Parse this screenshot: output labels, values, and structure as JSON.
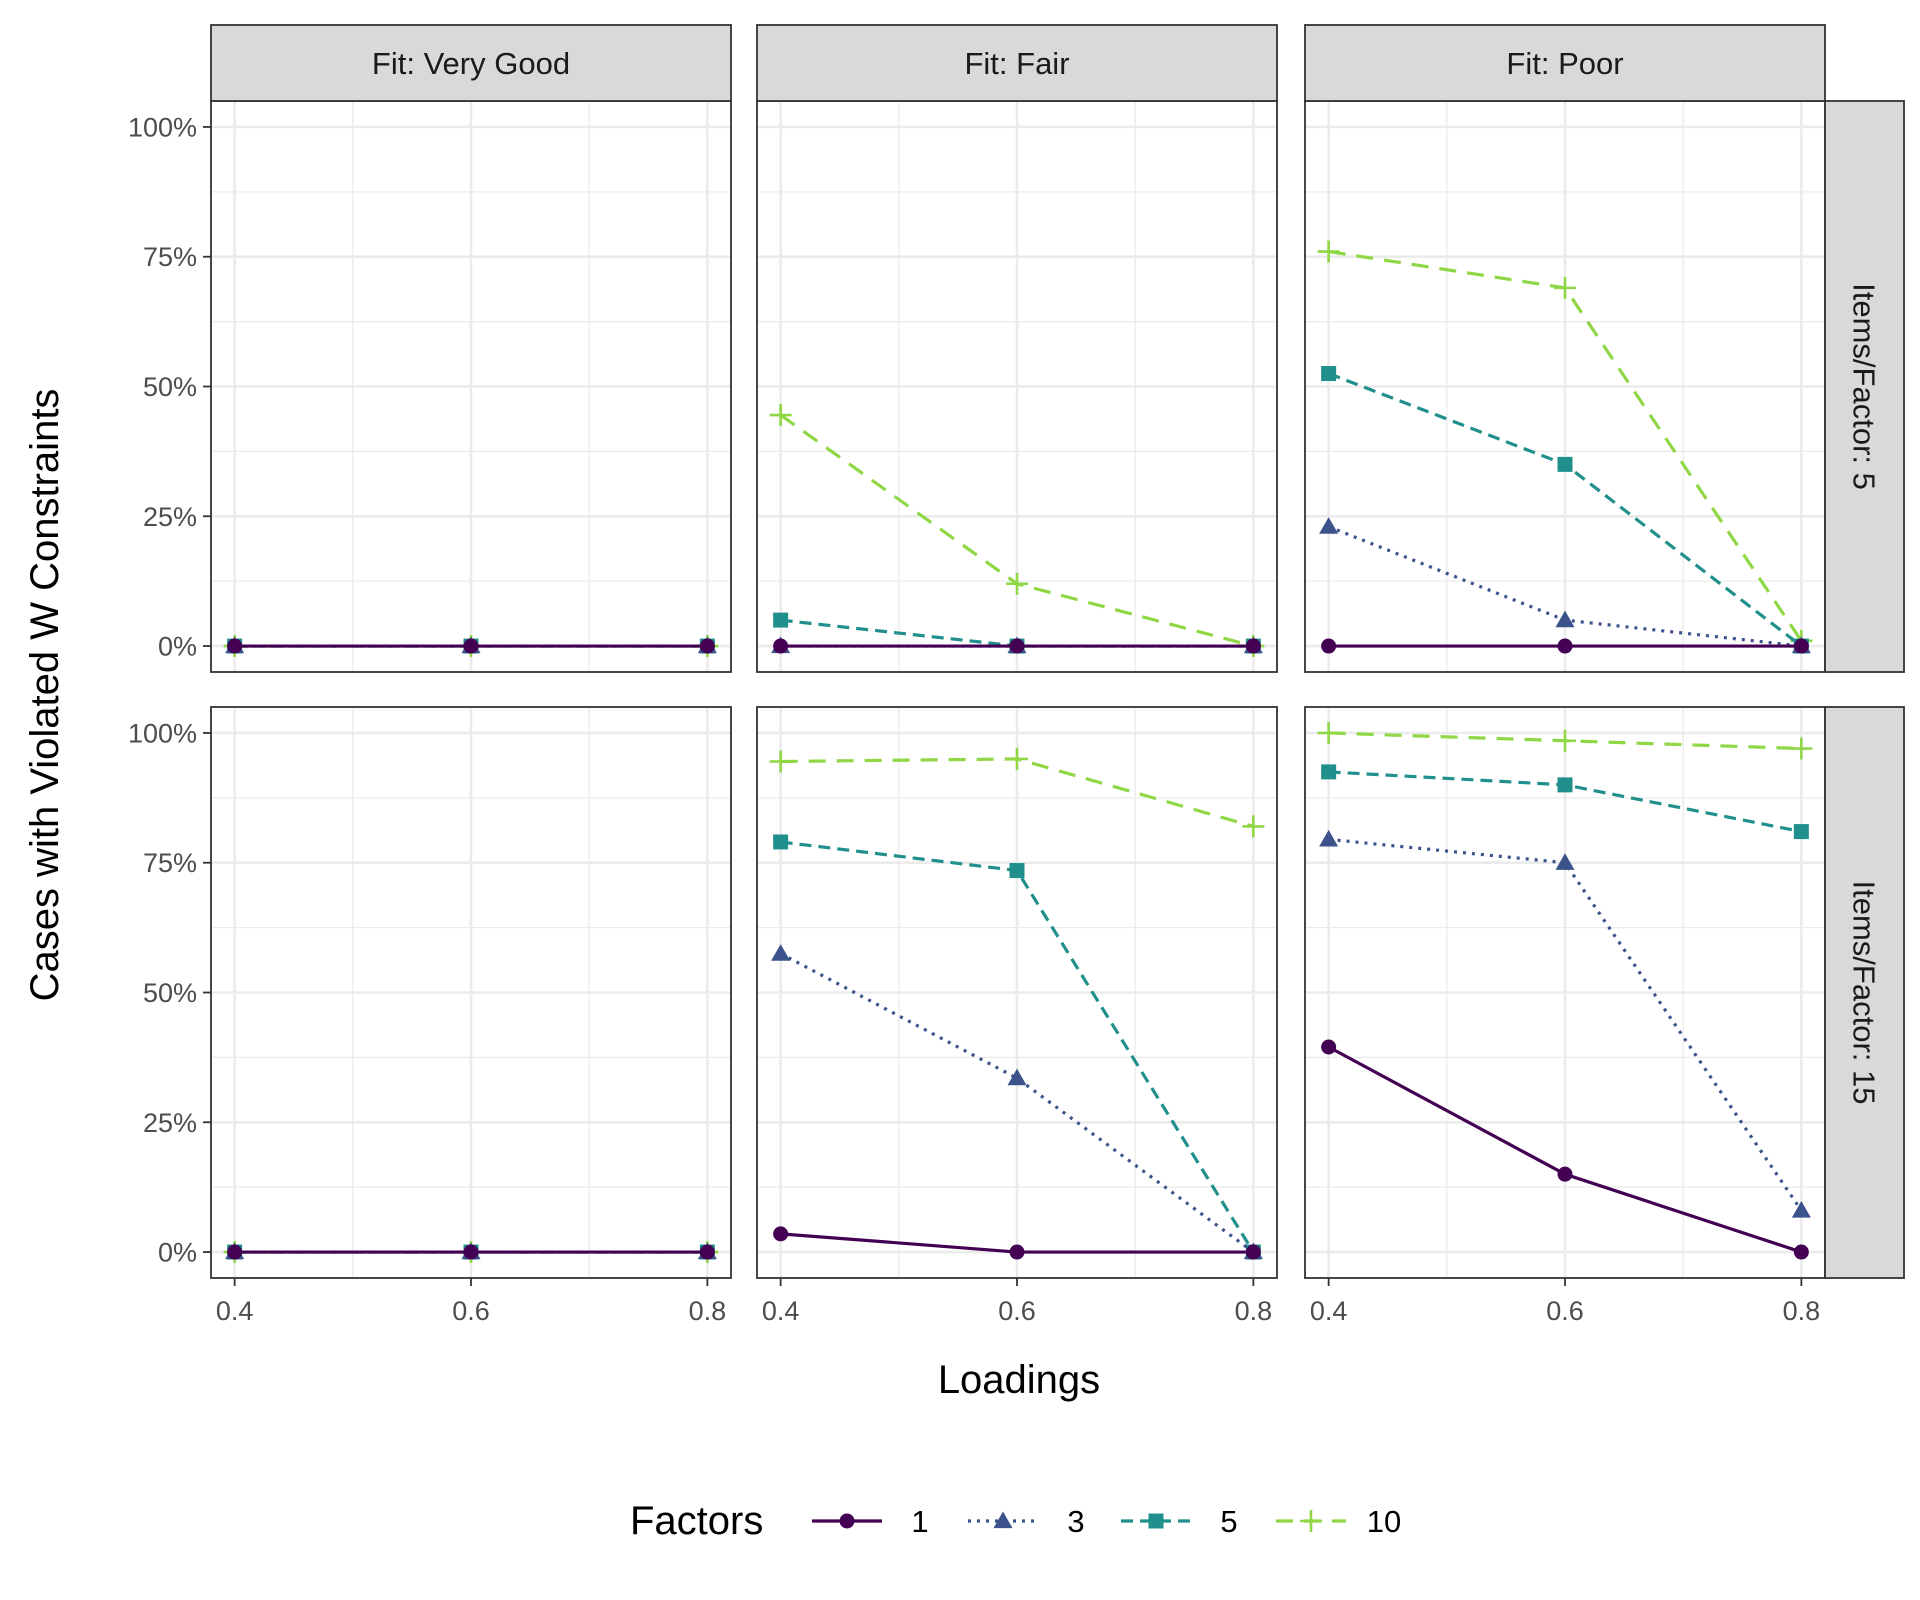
{
  "chart_data": {
    "type": "line",
    "facet_columns": [
      {
        "label": "Fit: Very Good"
      },
      {
        "label": "Fit: Fair"
      },
      {
        "label": "Fit: Poor"
      }
    ],
    "facet_rows": [
      {
        "label": "Items/Factor: 5"
      },
      {
        "label": "Items/Factor: 15"
      }
    ],
    "x": [
      0.4,
      0.6,
      0.8
    ],
    "x_tick_labels": [
      "0.4",
      "0.6",
      "0.8"
    ],
    "xlim": [
      0.38,
      0.82
    ],
    "ylim": [
      -0.05,
      1.05
    ],
    "y_ticks": [
      0,
      0.25,
      0.5,
      0.75,
      1
    ],
    "y_tick_labels": [
      "0%",
      "25%",
      "50%",
      "75%",
      "100%"
    ],
    "xlabel": "Loadings",
    "ylabel": "Cases with Violated W Constraints",
    "legend": {
      "title": "Factors",
      "position": "bottom"
    },
    "series_styles": [
      {
        "name": "1",
        "color": "#440154",
        "marker": "circle",
        "dash": "solid"
      },
      {
        "name": "3",
        "color": "#3b528b",
        "marker": "triangle",
        "dash": "dotted"
      },
      {
        "name": "5",
        "color": "#21908c",
        "marker": "square",
        "dash": "dashed"
      },
      {
        "name": "10",
        "color": "#8fd744",
        "marker": "plus",
        "dash": "longdash"
      }
    ],
    "panels": [
      {
        "row": 0,
        "col": 0,
        "series": [
          {
            "name": "1",
            "values": [
              0,
              0,
              0
            ]
          },
          {
            "name": "3",
            "values": [
              0,
              0,
              0
            ]
          },
          {
            "name": "5",
            "values": [
              0,
              0,
              0
            ]
          },
          {
            "name": "10",
            "values": [
              0,
              0,
              0
            ]
          }
        ]
      },
      {
        "row": 0,
        "col": 1,
        "series": [
          {
            "name": "1",
            "values": [
              0,
              0,
              0
            ]
          },
          {
            "name": "3",
            "values": [
              0,
              0,
              0
            ]
          },
          {
            "name": "5",
            "values": [
              0.05,
              0,
              0
            ]
          },
          {
            "name": "10",
            "values": [
              0.445,
              0.12,
              0
            ]
          }
        ]
      },
      {
        "row": 0,
        "col": 2,
        "series": [
          {
            "name": "1",
            "values": [
              0,
              0,
              0
            ]
          },
          {
            "name": "3",
            "values": [
              0.23,
              0.05,
              0
            ]
          },
          {
            "name": "5",
            "values": [
              0.525,
              0.35,
              0
            ]
          },
          {
            "name": "10",
            "values": [
              0.76,
              0.69,
              0.01
            ]
          }
        ]
      },
      {
        "row": 1,
        "col": 0,
        "series": [
          {
            "name": "1",
            "values": [
              0,
              0,
              0
            ]
          },
          {
            "name": "3",
            "values": [
              0,
              0,
              0
            ]
          },
          {
            "name": "5",
            "values": [
              0,
              0,
              0
            ]
          },
          {
            "name": "10",
            "values": [
              0,
              0,
              0
            ]
          }
        ]
      },
      {
        "row": 1,
        "col": 1,
        "series": [
          {
            "name": "1",
            "values": [
              0.035,
              0,
              0
            ]
          },
          {
            "name": "3",
            "values": [
              0.575,
              0.335,
              0
            ]
          },
          {
            "name": "5",
            "values": [
              0.79,
              0.735,
              0
            ]
          },
          {
            "name": "10",
            "values": [
              0.945,
              0.95,
              0.82
            ]
          }
        ]
      },
      {
        "row": 1,
        "col": 2,
        "series": [
          {
            "name": "1",
            "values": [
              0.395,
              0.15,
              0
            ]
          },
          {
            "name": "3",
            "values": [
              0.795,
              0.75,
              0.08
            ]
          },
          {
            "name": "5",
            "values": [
              0.925,
              0.9,
              0.81
            ]
          },
          {
            "name": "10",
            "values": [
              1.0,
              0.985,
              0.97
            ]
          }
        ]
      }
    ]
  }
}
